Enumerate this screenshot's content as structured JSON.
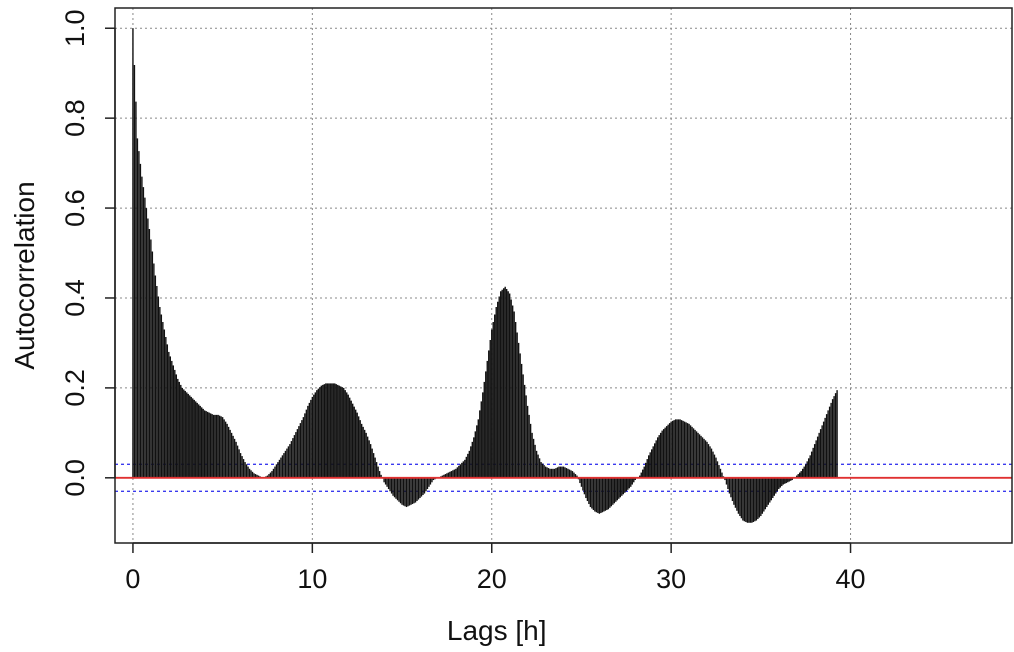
{
  "chart_data": {
    "type": "bar",
    "title": "",
    "xlabel": "Lags [h]",
    "ylabel": "Autocorrelation",
    "xlim": [
      -1,
      49
    ],
    "ylim": [
      -0.145,
      1.045
    ],
    "x_ticks": [
      0,
      10,
      20,
      30,
      40
    ],
    "x_tick_labels": [
      "0",
      "10",
      "20",
      "30",
      "40"
    ],
    "y_ticks": [
      0.0,
      0.2,
      0.4,
      0.6,
      0.8,
      1.0
    ],
    "y_tick_labels": [
      "0.0",
      "0.2",
      "0.4",
      "0.6",
      "0.8",
      "1.0"
    ],
    "grid": true,
    "lag_step": 0.25,
    "confidence_bounds": [
      0.03,
      -0.03
    ],
    "zero_line_color": "#e03030",
    "bar_color": "#111111",
    "confidence_line_color": "#3a3aee",
    "grid_color": "#888888",
    "values": [
      1.0,
      0.755,
      0.67,
      0.6,
      0.53,
      0.45,
      0.38,
      0.33,
      0.28,
      0.25,
      0.22,
      0.2,
      0.19,
      0.18,
      0.17,
      0.16,
      0.15,
      0.145,
      0.14,
      0.14,
      0.135,
      0.12,
      0.1,
      0.08,
      0.055,
      0.035,
      0.02,
      0.01,
      0.005,
      0.0,
      0.005,
      0.015,
      0.03,
      0.045,
      0.06,
      0.075,
      0.095,
      0.115,
      0.135,
      0.16,
      0.18,
      0.195,
      0.205,
      0.21,
      0.21,
      0.21,
      0.205,
      0.2,
      0.185,
      0.165,
      0.145,
      0.12,
      0.1,
      0.075,
      0.045,
      0.015,
      -0.01,
      -0.025,
      -0.04,
      -0.05,
      -0.06,
      -0.065,
      -0.06,
      -0.055,
      -0.045,
      -0.035,
      -0.02,
      -0.005,
      0.0,
      0.005,
      0.01,
      0.015,
      0.02,
      0.03,
      0.04,
      0.06,
      0.09,
      0.13,
      0.19,
      0.26,
      0.33,
      0.38,
      0.415,
      0.425,
      0.41,
      0.37,
      0.3,
      0.23,
      0.16,
      0.1,
      0.06,
      0.035,
      0.025,
      0.02,
      0.02,
      0.025,
      0.025,
      0.02,
      0.015,
      0.005,
      -0.02,
      -0.045,
      -0.065,
      -0.075,
      -0.08,
      -0.075,
      -0.07,
      -0.06,
      -0.05,
      -0.04,
      -0.03,
      -0.02,
      -0.005,
      0.005,
      0.025,
      0.05,
      0.07,
      0.09,
      0.105,
      0.115,
      0.125,
      0.13,
      0.13,
      0.125,
      0.12,
      0.11,
      0.1,
      0.09,
      0.08,
      0.065,
      0.045,
      0.02,
      -0.005,
      -0.035,
      -0.06,
      -0.08,
      -0.095,
      -0.1,
      -0.1,
      -0.095,
      -0.085,
      -0.07,
      -0.055,
      -0.04,
      -0.025,
      -0.015,
      -0.01,
      -0.005,
      0.005,
      0.015,
      0.03,
      0.05,
      0.075,
      0.1,
      0.125,
      0.15,
      0.175,
      0.195
    ]
  }
}
